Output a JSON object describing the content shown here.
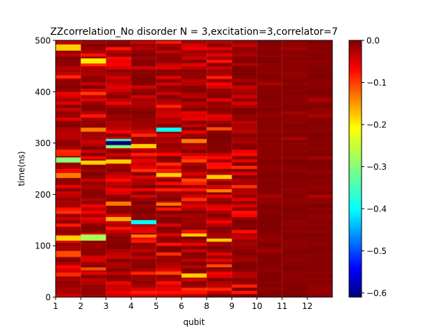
{
  "chart_data": {
    "type": "heatmap",
    "title": "ZZcorrelation_No disorder  N =  3,excitation=3,correlator=7",
    "xlabel": "qubit",
    "ylabel": "time(ns)",
    "x_tick_labels": [
      "1",
      "2",
      "3",
      "4",
      "5",
      "6",
      "8",
      "9",
      "10",
      "11",
      "12"
    ],
    "columns": 11,
    "ylim": [
      0,
      500
    ],
    "y_ticks": [
      0,
      100,
      200,
      300,
      400,
      500
    ],
    "row_step_ns": 6.25,
    "colorbar": {
      "colormap": "jet",
      "min": -0.61,
      "max": 0.0,
      "ticks": [
        "0.0",
        "−0.1",
        "−0.2",
        "−0.3",
        "−0.4",
        "−0.5",
        "−0.6"
      ],
      "tick_values": [
        0.0,
        -0.1,
        -0.2,
        -0.3,
        -0.4,
        -0.5,
        -0.6
      ]
    },
    "features": [
      {
        "column": 1,
        "time_range": [
          480,
          492
        ],
        "value": -0.2
      },
      {
        "column": 1,
        "time_range": [
          426,
          432
        ],
        "value": -0.1
      },
      {
        "column": 1,
        "time_range": [
          262,
          272
        ],
        "value": -0.3
      },
      {
        "column": 1,
        "time_range": [
          232,
          242
        ],
        "value": -0.15
      },
      {
        "column": 1,
        "time_range": [
          110,
          120
        ],
        "value": -0.2
      },
      {
        "column": 1,
        "time_range": [
          78,
          90
        ],
        "value": -0.12
      },
      {
        "column": 1,
        "time_range": [
          40,
          48
        ],
        "value": -0.1
      },
      {
        "column": 2,
        "time_range": [
          455,
          465
        ],
        "value": -0.22
      },
      {
        "column": 2,
        "time_range": [
          322,
          330
        ],
        "value": -0.15
      },
      {
        "column": 2,
        "time_range": [
          258,
          266
        ],
        "value": -0.2
      },
      {
        "column": 2,
        "time_range": [
          110,
          122
        ],
        "value": -0.28
      },
      {
        "column": 2,
        "time_range": [
          52,
          58
        ],
        "value": -0.12
      },
      {
        "column": 3,
        "time_range": [
          296,
          304
        ],
        "value": -0.61
      },
      {
        "column": 3,
        "time_range": [
          304,
          308
        ],
        "value": -0.35
      },
      {
        "column": 3,
        "time_range": [
          290,
          296
        ],
        "value": -0.3
      },
      {
        "column": 3,
        "time_range": [
          260,
          268
        ],
        "value": -0.2
      },
      {
        "column": 3,
        "time_range": [
          178,
          186
        ],
        "value": -0.15
      },
      {
        "column": 3,
        "time_range": [
          148,
          156
        ],
        "value": -0.18
      },
      {
        "column": 4,
        "time_range": [
          290,
          298
        ],
        "value": -0.2
      },
      {
        "column": 4,
        "time_range": [
          142,
          150
        ],
        "value": -0.38
      },
      {
        "column": 4,
        "time_range": [
          116,
          122
        ],
        "value": -0.15
      },
      {
        "column": 5,
        "time_range": [
          322,
          330
        ],
        "value": -0.38
      },
      {
        "column": 5,
        "time_range": [
          234,
          242
        ],
        "value": -0.2
      },
      {
        "column": 5,
        "time_range": [
          178,
          184
        ],
        "value": -0.15
      },
      {
        "column": 5,
        "time_range": [
          44,
          50
        ],
        "value": -0.12
      },
      {
        "column": 6,
        "time_range": [
          300,
          308
        ],
        "value": -0.15
      },
      {
        "column": 6,
        "time_range": [
          118,
          124
        ],
        "value": -0.2
      },
      {
        "column": 6,
        "time_range": [
          38,
          46
        ],
        "value": -0.2
      },
      {
        "column": 7,
        "time_range": [
          230,
          238
        ],
        "value": -0.2
      },
      {
        "column": 7,
        "time_range": [
          204,
          210
        ],
        "value": -0.15
      },
      {
        "column": 7,
        "time_range": [
          108,
          114
        ],
        "value": -0.2
      },
      {
        "column": 7,
        "time_range": [
          58,
          64
        ],
        "value": -0.12
      }
    ]
  }
}
